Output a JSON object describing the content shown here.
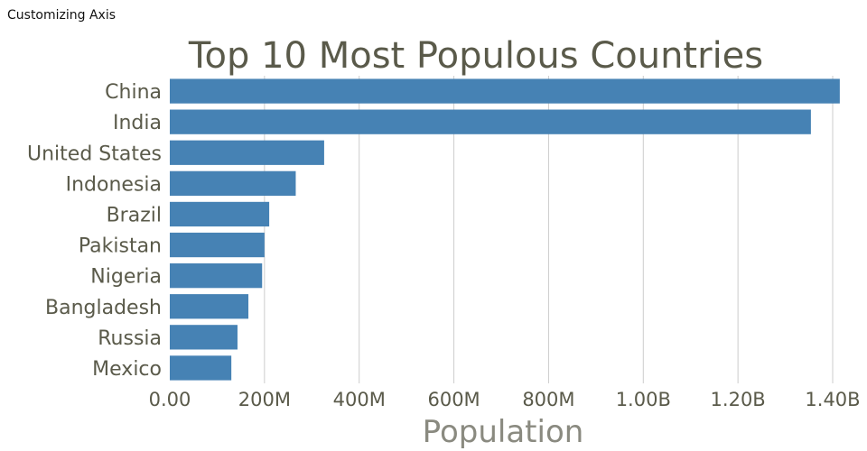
{
  "caption": "Customizing Axis",
  "chart_data": {
    "type": "bar",
    "orientation": "horizontal",
    "title": "Top 10 Most Populous Countries",
    "xlabel": "Population",
    "ylabel": "",
    "categories": [
      "China",
      "India",
      "United States",
      "Indonesia",
      "Brazil",
      "Pakistan",
      "Nigeria",
      "Bangladesh",
      "Russia",
      "Mexico"
    ],
    "values": [
      1415000000,
      1354000000,
      326000000,
      266000000,
      210000000,
      200000000,
      195000000,
      166000000,
      143000000,
      130000000
    ],
    "xlim": [
      0,
      1400000000
    ],
    "x_ticks": [
      0,
      200000000,
      400000000,
      600000000,
      800000000,
      1000000000,
      1200000000,
      1400000000
    ],
    "x_tick_labels": [
      "0.00",
      "200M",
      "400M",
      "600M",
      "800M",
      "1.00B",
      "1.20B",
      "1.40B"
    ],
    "grid": "vertical",
    "bar_color": "#4682b4"
  }
}
